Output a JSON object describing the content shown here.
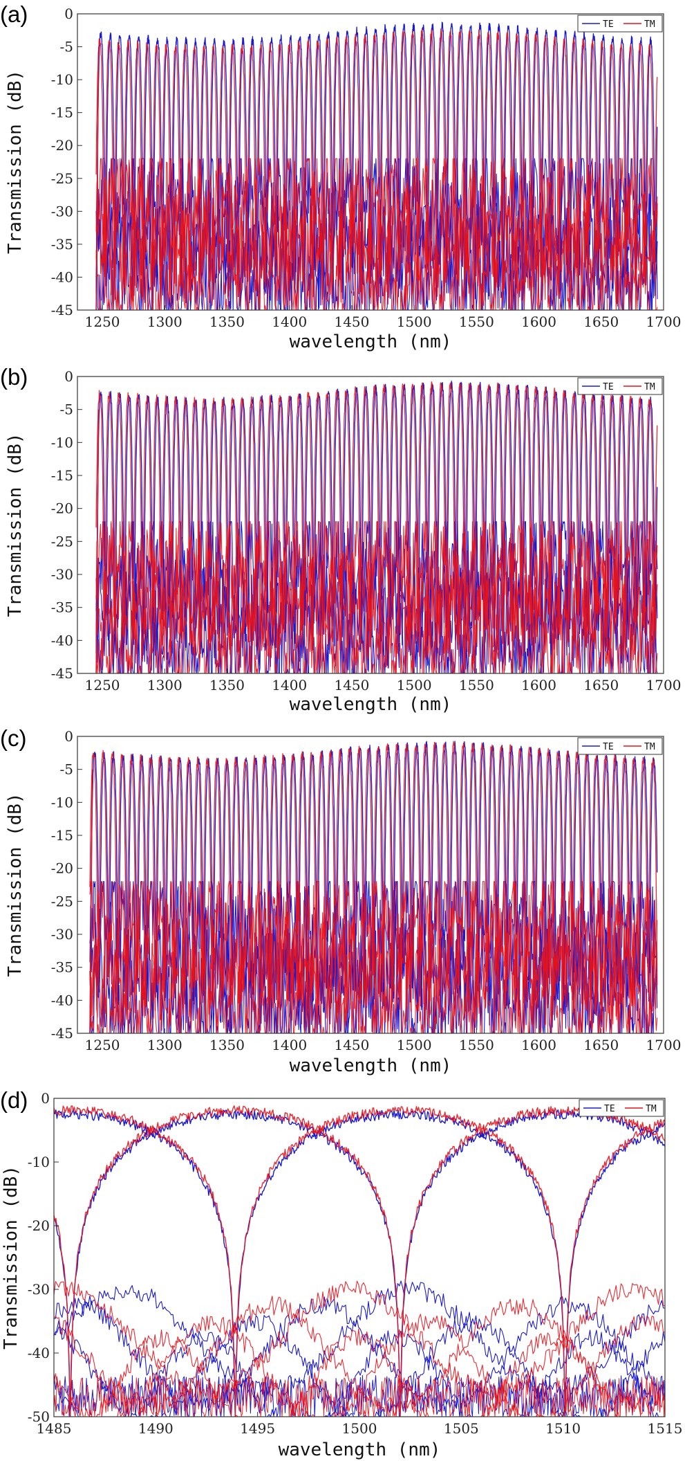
{
  "colors": {
    "TE": "#1a1ad0",
    "TM": "#e8121a"
  },
  "chart_data": [
    {
      "type": "line",
      "panel_label": "(a)",
      "xlabel": "wavelength (nm)",
      "ylabel": "Transmission (dB)",
      "xlim": [
        1230,
        1700
      ],
      "ylim": [
        -45,
        0
      ],
      "xticks": [
        1250,
        1300,
        1350,
        1400,
        1450,
        1500,
        1550,
        1600,
        1650,
        1700
      ],
      "yticks": [
        0,
        -5,
        -10,
        -15,
        -20,
        -25,
        -30,
        -35,
        -40,
        -45
      ],
      "legend_position": "top-right",
      "series": [
        {
          "name": "TE",
          "color": "#1a1ad0",
          "x_start": 1245,
          "x_end": 1695,
          "peak_period_nm": 7.6,
          "peak_dB": -3,
          "floor_dB": -40
        },
        {
          "name": "TM",
          "color": "#e8121a",
          "x_start": 1245,
          "x_end": 1695,
          "peak_period_nm": 7.6,
          "peak_dB": -4,
          "floor_dB": -40
        }
      ]
    },
    {
      "type": "line",
      "panel_label": "(b)",
      "xlabel": "wavelength (nm)",
      "ylabel": "Transmission (dB)",
      "xlim": [
        1230,
        1700
      ],
      "ylim": [
        -45,
        0
      ],
      "xticks": [
        1250,
        1300,
        1350,
        1400,
        1450,
        1500,
        1550,
        1600,
        1650,
        1700
      ],
      "yticks": [
        0,
        -5,
        -10,
        -15,
        -20,
        -25,
        -30,
        -35,
        -40,
        -45
      ],
      "legend_position": "top-right",
      "series": [
        {
          "name": "TE",
          "color": "#1a1ad0",
          "x_start": 1245,
          "x_end": 1695,
          "peak_period_nm": 7.6,
          "peak_dB": -2.5,
          "floor_dB": -38
        },
        {
          "name": "TM",
          "color": "#e8121a",
          "x_start": 1245,
          "x_end": 1695,
          "peak_period_nm": 7.6,
          "peak_dB": -2.5,
          "floor_dB": -38
        }
      ]
    },
    {
      "type": "line",
      "panel_label": "(c)",
      "xlabel": "wavelength (nm)",
      "ylabel": "Transmission (dB)",
      "xlim": [
        1230,
        1700
      ],
      "ylim": [
        -45,
        0
      ],
      "xticks": [
        1250,
        1300,
        1350,
        1400,
        1450,
        1500,
        1550,
        1600,
        1650,
        1700
      ],
      "yticks": [
        0,
        -5,
        -10,
        -15,
        -20,
        -25,
        -30,
        -35,
        -40,
        -45
      ],
      "legend_position": "top-right",
      "series": [
        {
          "name": "TE",
          "color": "#1a1ad0",
          "x_start": 1240,
          "x_end": 1695,
          "peak_period_nm": 7.6,
          "peak_dB": -2.5,
          "floor_dB": -38
        },
        {
          "name": "TM",
          "color": "#e8121a",
          "x_start": 1240,
          "x_end": 1695,
          "peak_period_nm": 7.6,
          "peak_dB": -2.5,
          "floor_dB": -38
        }
      ]
    },
    {
      "type": "line",
      "panel_label": "(d)",
      "xlabel": "wavelength (nm)",
      "ylabel": "Transmission (dB)",
      "xlim": [
        1485,
        1515
      ],
      "ylim": [
        -50,
        0
      ],
      "xticks": [
        1485,
        1490,
        1495,
        1500,
        1505,
        1510,
        1515
      ],
      "yticks": [
        0,
        -10,
        -20,
        -30,
        -40,
        -50
      ],
      "legend_position": "top-right",
      "series": [
        {
          "name": "TE",
          "color": "#1a1ad0",
          "x_start": 1485,
          "x_end": 1515,
          "peak_centers_nm": [
            1485.8,
            1493.0,
            1501.2,
            1509.3
          ],
          "peak_dB": -2,
          "floor_dB": -45
        },
        {
          "name": "TM",
          "color": "#e8121a",
          "x_start": 1485,
          "x_end": 1515,
          "peak_centers_nm": [
            1485.8,
            1493.0,
            1501.2,
            1509.3
          ],
          "peak_dB": -2,
          "floor_dB": -45
        }
      ]
    }
  ]
}
